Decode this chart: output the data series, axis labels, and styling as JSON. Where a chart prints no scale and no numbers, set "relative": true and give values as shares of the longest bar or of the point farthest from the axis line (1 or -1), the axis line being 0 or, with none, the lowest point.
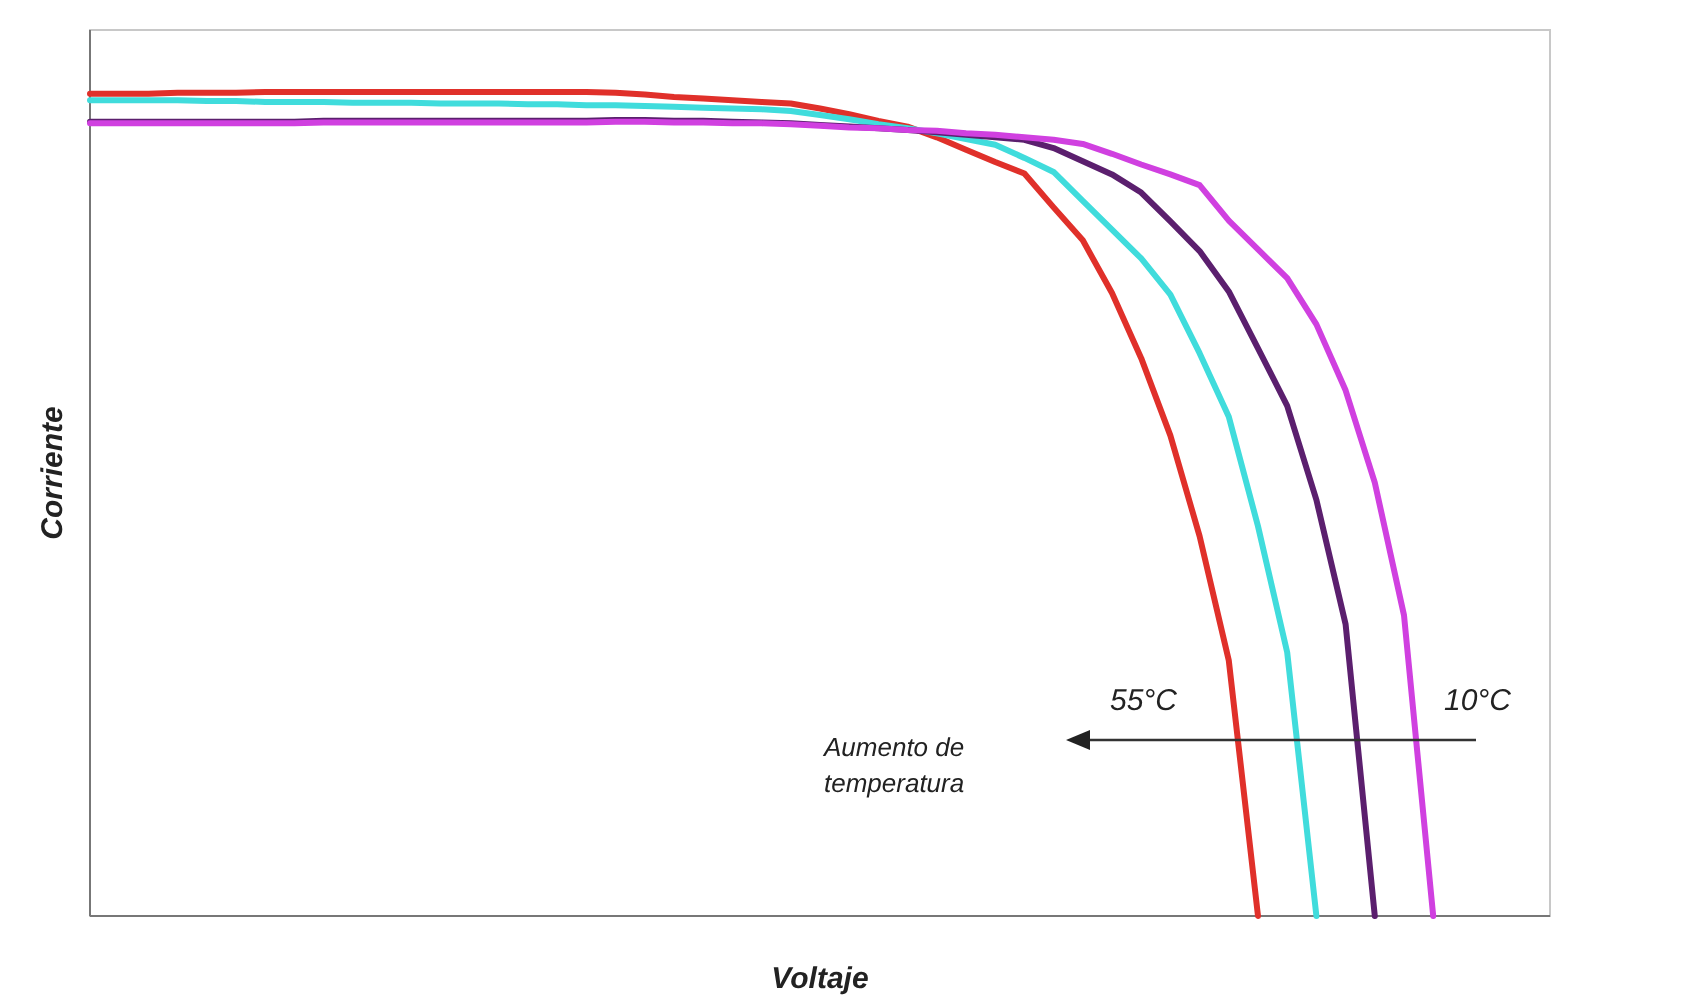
{
  "chart_data": {
    "type": "line",
    "relative": true,
    "xlabel": "Voltaje",
    "ylabel": "Corriente",
    "line_style": "solid",
    "categories": [
      null,
      null,
      null,
      null,
      null,
      null,
      null,
      null,
      null,
      null,
      null,
      null,
      null,
      null,
      null,
      null,
      null,
      null,
      null,
      null,
      null,
      null,
      null,
      null,
      null,
      null,
      null,
      null,
      null,
      null,
      null,
      null,
      null,
      null,
      null,
      null,
      null,
      null,
      null,
      null,
      null,
      null,
      null,
      null,
      null,
      null,
      null,
      null,
      null,
      null,
      null
    ],
    "annotations": [
      "55°C",
      "10°C",
      "Aumento de temperatura"
    ],
    "series": [
      {
        "color": "#e0302a",
        "values": [
          0.998,
          0.998,
          0.998,
          0.999,
          0.999,
          0.999,
          1,
          1,
          1,
          1,
          1,
          1,
          1,
          1,
          1,
          1,
          1,
          1,
          0.999,
          0.997,
          0.994,
          0.992,
          0.99,
          0.988,
          0.986,
          0.98,
          0.973,
          0.965,
          0.958,
          0.945,
          0.93,
          0.915,
          0.901,
          0.86,
          0.82,
          0.756,
          0.677,
          0.583,
          0.461,
          0.31,
          0,
          null,
          null,
          null,
          null,
          null,
          null,
          null,
          null,
          null,
          null
        ]
      },
      {
        "color": "#40dcdc",
        "values": [
          0.99,
          0.99,
          0.99,
          0.99,
          0.989,
          0.989,
          0.988,
          0.988,
          0.988,
          0.987,
          0.987,
          0.987,
          0.986,
          0.986,
          0.986,
          0.985,
          0.985,
          0.984,
          0.984,
          0.983,
          0.982,
          0.981,
          0.98,
          0.979,
          0.977,
          0.972,
          0.967,
          0.961,
          0.956,
          0.95,
          0.943,
          0.936,
          0.92,
          0.903,
          0.868,
          0.833,
          0.798,
          0.754,
          0.683,
          0.606,
          0.473,
          0.32,
          0,
          null,
          null,
          null,
          null,
          null,
          null,
          null,
          null
        ]
      },
      {
        "color": "#5b1f6e",
        "values": [
          0.964,
          0.964,
          0.964,
          0.964,
          0.964,
          0.964,
          0.964,
          0.964,
          0.965,
          0.965,
          0.965,
          0.965,
          0.965,
          0.965,
          0.965,
          0.965,
          0.965,
          0.965,
          0.966,
          0.966,
          0.965,
          0.965,
          0.964,
          0.963,
          0.962,
          0.96,
          0.958,
          0.956,
          0.954,
          0.951,
          0.948,
          0.945,
          0.942,
          0.932,
          0.916,
          0.9,
          0.878,
          0.843,
          0.807,
          0.758,
          0.689,
          0.619,
          0.505,
          0.354,
          0,
          null,
          null,
          null,
          null,
          null,
          null
        ]
      },
      {
        "color": "#d040e0",
        "values": [
          0.962,
          0.962,
          0.962,
          0.962,
          0.962,
          0.962,
          0.962,
          0.962,
          0.963,
          0.963,
          0.963,
          0.963,
          0.963,
          0.963,
          0.963,
          0.963,
          0.963,
          0.963,
          0.964,
          0.964,
          0.963,
          0.963,
          0.962,
          0.962,
          0.961,
          0.959,
          0.957,
          0.956,
          0.954,
          0.953,
          0.95,
          0.948,
          0.945,
          0.942,
          0.937,
          0.925,
          0.912,
          0.9,
          0.887,
          0.844,
          0.809,
          0.774,
          0.718,
          0.638,
          0.526,
          0.365,
          0,
          null,
          null,
          null,
          null
        ]
      }
    ]
  }
}
